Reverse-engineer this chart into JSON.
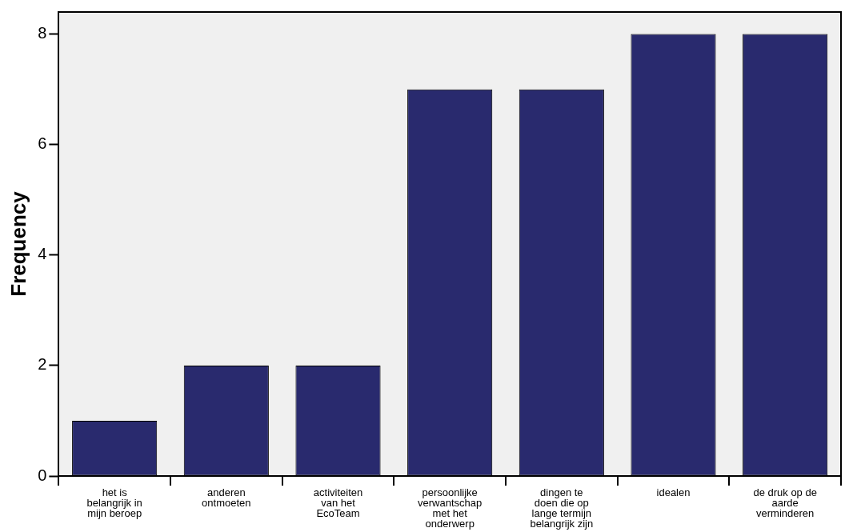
{
  "chart_data": {
    "type": "bar",
    "ylabel": "Frequency",
    "categories": [
      "het is belangrijk in mijn beroep",
      "anderen ontmoeten",
      "activiteiten van het EcoTeam",
      "persoonlijke verwantschap met het onderwerp",
      "dingen te doen die op lange termijn belangrijk zijn",
      "idealen",
      "de druk op de aarde verminderen"
    ],
    "values": [
      1,
      2,
      2,
      7,
      7,
      8,
      8
    ],
    "color": "#292a6e",
    "ylim": [
      0,
      8.4
    ],
    "yticks": [
      0,
      2,
      4,
      6,
      8
    ],
    "grid": false,
    "legend": false
  }
}
